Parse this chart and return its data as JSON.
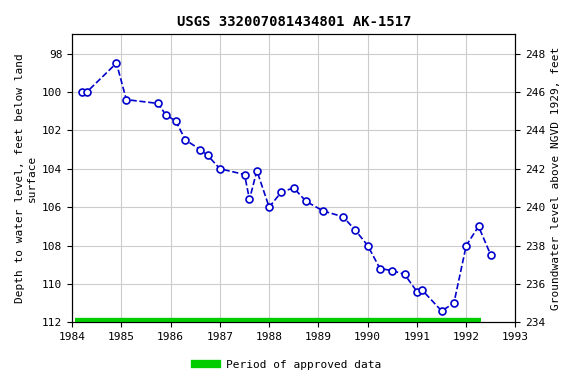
{
  "title": "USGS 332007081434801 AK-1517",
  "xlabel": "",
  "ylabel_left": "Depth to water level, feet below land\nsurface",
  "ylabel_right": "Groundwater level above NGVD 1929, feet",
  "xlim": [
    1984,
    1993
  ],
  "ylim_left": [
    112,
    97
  ],
  "ylim_right": [
    234,
    249
  ],
  "yticks_left": [
    98,
    100,
    102,
    104,
    106,
    108,
    110,
    112
  ],
  "yticks_right": [
    248,
    246,
    244,
    242,
    240,
    238,
    236,
    234
  ],
  "xticks": [
    1984,
    1985,
    1986,
    1987,
    1988,
    1989,
    1990,
    1991,
    1992,
    1993
  ],
  "data_x": [
    1984.2,
    1984.3,
    1984.9,
    1985.1,
    1985.75,
    1985.9,
    1986.1,
    1986.3,
    1986.6,
    1986.75,
    1987.0,
    1987.5,
    1987.6,
    1987.75,
    1988.0,
    1988.25,
    1988.5,
    1988.75,
    1989.1,
    1989.5,
    1989.75,
    1990.0,
    1990.25,
    1990.5,
    1990.75,
    1991.0,
    1991.1,
    1991.5,
    1991.75,
    1992.0,
    1992.25,
    1992.5
  ],
  "data_y": [
    100.0,
    100.0,
    98.5,
    100.4,
    100.6,
    101.2,
    101.5,
    102.5,
    103.0,
    103.3,
    104.0,
    104.3,
    105.6,
    104.1,
    106.0,
    105.2,
    105.0,
    105.7,
    106.2,
    106.5,
    107.2,
    108.0,
    109.2,
    109.3,
    109.5,
    110.4,
    110.3,
    111.4,
    111.0,
    108.0,
    107.0,
    108.5
  ],
  "line_color": "#0000cc",
  "marker_color": "#0000cc",
  "marker_face": "white",
  "line_style": "--",
  "marker_style": "o",
  "marker_size": 5,
  "line_width": 1.2,
  "grid_color": "#cccccc",
  "bg_color": "#ffffff",
  "legend_label": "Period of approved data",
  "legend_color": "#00cc00",
  "bar_x_start": 1984.05,
  "bar_x_end": 1992.3,
  "bar_y": 112.0,
  "font_family": "monospace"
}
